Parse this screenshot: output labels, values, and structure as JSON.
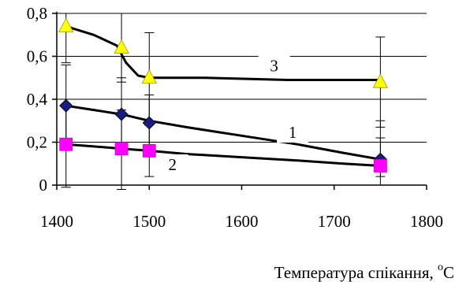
{
  "chart_data": {
    "type": "line",
    "xlabel_main": "Температура спікання, ",
    "xlabel_sup": "o",
    "xlabel_unit": "C",
    "ylabel": "",
    "xlim": [
      1400,
      1800
    ],
    "ylim": [
      0,
      0.8
    ],
    "x_ticks": [
      1400,
      1500,
      1600,
      1700,
      1800
    ],
    "x_tick_labels": [
      "1400",
      "1500",
      "1600",
      "1700",
      "1800"
    ],
    "y_ticks": [
      0,
      0.2,
      0.4,
      0.6,
      0.8
    ],
    "y_tick_labels": [
      "0",
      "0,2",
      "0,4",
      "0,6",
      "0,8"
    ],
    "grid": "horizontal",
    "series": [
      {
        "name": "1",
        "marker": "diamond",
        "color": "#1a1a80",
        "points": [
          [
            1410,
            0.37
          ],
          [
            1470,
            0.33
          ],
          [
            1500,
            0.29
          ],
          [
            1750,
            0.12
          ]
        ],
        "curve": [
          [
            1410,
            0.37
          ],
          [
            1440,
            0.35
          ],
          [
            1470,
            0.33
          ],
          [
            1500,
            0.3
          ],
          [
            1540,
            0.27
          ],
          [
            1600,
            0.23
          ],
          [
            1660,
            0.19
          ],
          [
            1710,
            0.15
          ],
          [
            1750,
            0.12
          ]
        ],
        "error": [
          [
            1410,
            0.19,
            0.56
          ],
          [
            1470,
            0.17,
            0.5
          ],
          [
            1500,
            0.17,
            0.42
          ],
          [
            1750,
            0.04,
            0.3
          ]
        ]
      },
      {
        "name": "2",
        "marker": "square",
        "color": "#ff00ff",
        "points": [
          [
            1410,
            0.19
          ],
          [
            1470,
            0.17
          ],
          [
            1500,
            0.16
          ],
          [
            1750,
            0.09
          ]
        ],
        "curve": [
          [
            1410,
            0.19
          ],
          [
            1440,
            0.18
          ],
          [
            1470,
            0.17
          ],
          [
            1500,
            0.16
          ],
          [
            1540,
            0.145
          ],
          [
            1600,
            0.13
          ],
          [
            1660,
            0.115
          ],
          [
            1710,
            0.1
          ],
          [
            1750,
            0.09
          ]
        ],
        "error": [
          [
            1410,
            -0.01,
            0.38
          ],
          [
            1470,
            -0.02,
            0.35
          ],
          [
            1500,
            0.04,
            0.28
          ],
          [
            1750,
            0.0,
            0.22
          ]
        ]
      },
      {
        "name": "3",
        "marker": "triangle",
        "color": "#ffff00",
        "points": [
          [
            1410,
            0.74
          ],
          [
            1470,
            0.64
          ],
          [
            1500,
            0.5
          ],
          [
            1750,
            0.48
          ]
        ],
        "curve": [
          [
            1410,
            0.74
          ],
          [
            1440,
            0.7
          ],
          [
            1465,
            0.65
          ],
          [
            1475,
            0.57
          ],
          [
            1488,
            0.51
          ],
          [
            1500,
            0.5
          ],
          [
            1560,
            0.5
          ],
          [
            1650,
            0.49
          ],
          [
            1750,
            0.49
          ]
        ],
        "error": [
          [
            1410,
            0.57,
            0.8
          ],
          [
            1470,
            0.48,
            0.8
          ],
          [
            1500,
            0.29,
            0.71
          ],
          [
            1750,
            0.27,
            0.69
          ]
        ]
      }
    ]
  }
}
